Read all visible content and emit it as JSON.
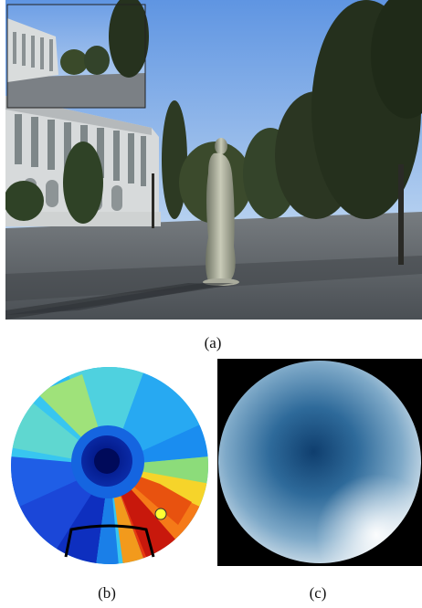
{
  "figure": {
    "captions": {
      "a": "(a)",
      "b": "(b)",
      "c": "(c)"
    }
  },
  "photo": {
    "scene": "campus-plaza-with-statue",
    "colors": {
      "sky": "#8fb6ea",
      "ground": "#5c6268",
      "building": "#d9dcdc",
      "trees": "#2f3b22"
    }
  },
  "panel_b": {
    "colormap": "jet",
    "marker_color": "#ffff33",
    "bracket_color": "#000000"
  },
  "panel_c": {
    "center_color": "#0f3e6e",
    "edge_color": "#f4f8fb",
    "background": "#000000"
  }
}
